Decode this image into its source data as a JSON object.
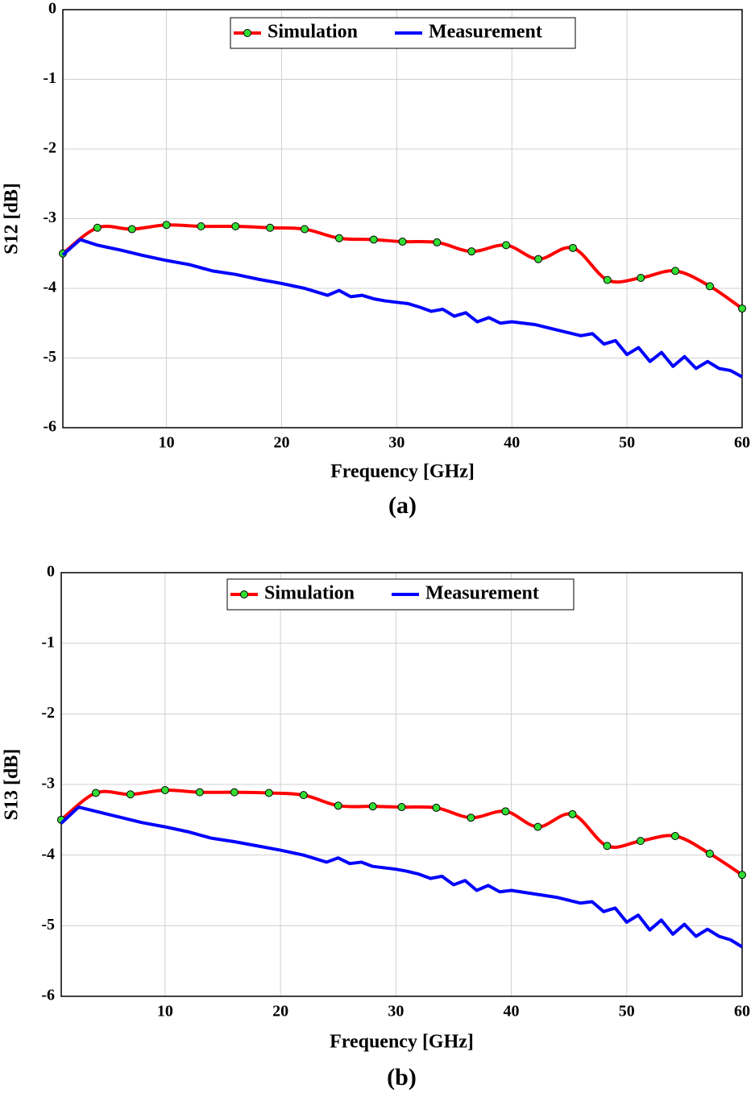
{
  "chart_data": [
    {
      "type": "line",
      "caption": "(a)",
      "xlabel": "Frequency [GHz]",
      "ylabel": "S12 [dB]",
      "xlim": [
        1,
        60
      ],
      "ylim": [
        -6,
        0
      ],
      "xticks": [
        10,
        20,
        30,
        40,
        50,
        60
      ],
      "yticks": [
        0,
        -1,
        -2,
        -3,
        -4,
        -5,
        -6
      ],
      "grid": true,
      "legend": "top",
      "series": [
        {
          "name": "Simulation",
          "color": "#ff0000",
          "marker_color": "#33dd33",
          "x": [
            1,
            4,
            7,
            10,
            13,
            16,
            19,
            22,
            25,
            28,
            30.5,
            33.5,
            36.5,
            39.5,
            42.3,
            45.3,
            48.3,
            51.2,
            54.2,
            57.2,
            60
          ],
          "values": [
            -3.5,
            -3.13,
            -3.15,
            -3.09,
            -3.11,
            -3.11,
            -3.13,
            -3.15,
            -3.28,
            -3.3,
            -3.33,
            -3.34,
            -3.47,
            -3.38,
            -3.58,
            -3.42,
            -3.88,
            -3.85,
            -3.75,
            -3.97,
            -4.29
          ]
        },
        {
          "name": "Measurement",
          "color": "#0000ff",
          "x": [
            1,
            2.5,
            4,
            6,
            8,
            10,
            12,
            14,
            16,
            18,
            20,
            22,
            23,
            24,
            25,
            26,
            27,
            28,
            29,
            30,
            31,
            32,
            33,
            34,
            35,
            36,
            37,
            38,
            39,
            40,
            42,
            44,
            46,
            47,
            48,
            49,
            50,
            51,
            52,
            53,
            54,
            55,
            56,
            57,
            58,
            59,
            60
          ],
          "values": [
            -3.52,
            -3.3,
            -3.38,
            -3.45,
            -3.53,
            -3.6,
            -3.66,
            -3.75,
            -3.8,
            -3.87,
            -3.93,
            -4.0,
            -4.05,
            -4.1,
            -4.03,
            -4.12,
            -4.1,
            -4.15,
            -4.18,
            -4.2,
            -4.22,
            -4.27,
            -4.33,
            -4.3,
            -4.4,
            -4.35,
            -4.48,
            -4.42,
            -4.5,
            -4.48,
            -4.52,
            -4.6,
            -4.68,
            -4.65,
            -4.8,
            -4.75,
            -4.95,
            -4.85,
            -5.05,
            -4.92,
            -5.12,
            -4.98,
            -5.15,
            -5.05,
            -5.15,
            -5.18,
            -5.27
          ]
        }
      ]
    },
    {
      "type": "line",
      "caption": "(b)",
      "xlabel": "Frequency [GHz]",
      "ylabel": "S13 [dB]",
      "xlim": [
        1,
        60
      ],
      "ylim": [
        -6,
        0
      ],
      "xticks": [
        10,
        20,
        30,
        40,
        50,
        60
      ],
      "yticks": [
        0,
        -1,
        -2,
        -3,
        -4,
        -5,
        -6
      ],
      "grid": true,
      "legend": "top",
      "series": [
        {
          "name": "Simulation",
          "color": "#ff0000",
          "marker_color": "#33dd33",
          "x": [
            1,
            4,
            7,
            10,
            13,
            16,
            19,
            22,
            25,
            28,
            30.5,
            33.5,
            36.5,
            39.5,
            42.3,
            45.3,
            48.3,
            51.2,
            54.2,
            57.2,
            60
          ],
          "values": [
            -3.5,
            -3.12,
            -3.14,
            -3.08,
            -3.11,
            -3.11,
            -3.12,
            -3.15,
            -3.3,
            -3.31,
            -3.32,
            -3.33,
            -3.47,
            -3.38,
            -3.6,
            -3.42,
            -3.87,
            -3.8,
            -3.73,
            -3.98,
            -4.28
          ]
        },
        {
          "name": "Measurement",
          "color": "#0000ff",
          "x": [
            1,
            2.5,
            4,
            6,
            8,
            10,
            12,
            14,
            16,
            18,
            20,
            22,
            23,
            24,
            25,
            26,
            27,
            28,
            29,
            30,
            31,
            32,
            33,
            34,
            35,
            36,
            37,
            38,
            39,
            40,
            42,
            44,
            46,
            47,
            48,
            49,
            50,
            51,
            52,
            53,
            54,
            55,
            56,
            57,
            58,
            59,
            60
          ],
          "values": [
            -3.55,
            -3.32,
            -3.38,
            -3.46,
            -3.54,
            -3.6,
            -3.67,
            -3.76,
            -3.81,
            -3.87,
            -3.93,
            -4.0,
            -4.05,
            -4.1,
            -4.04,
            -4.12,
            -4.1,
            -4.16,
            -4.18,
            -4.2,
            -4.23,
            -4.27,
            -4.33,
            -4.3,
            -4.42,
            -4.36,
            -4.5,
            -4.43,
            -4.52,
            -4.5,
            -4.55,
            -4.6,
            -4.68,
            -4.66,
            -4.8,
            -4.75,
            -4.95,
            -4.85,
            -5.06,
            -4.92,
            -5.12,
            -4.98,
            -5.15,
            -5.05,
            -5.15,
            -5.2,
            -5.3
          ]
        }
      ]
    }
  ]
}
